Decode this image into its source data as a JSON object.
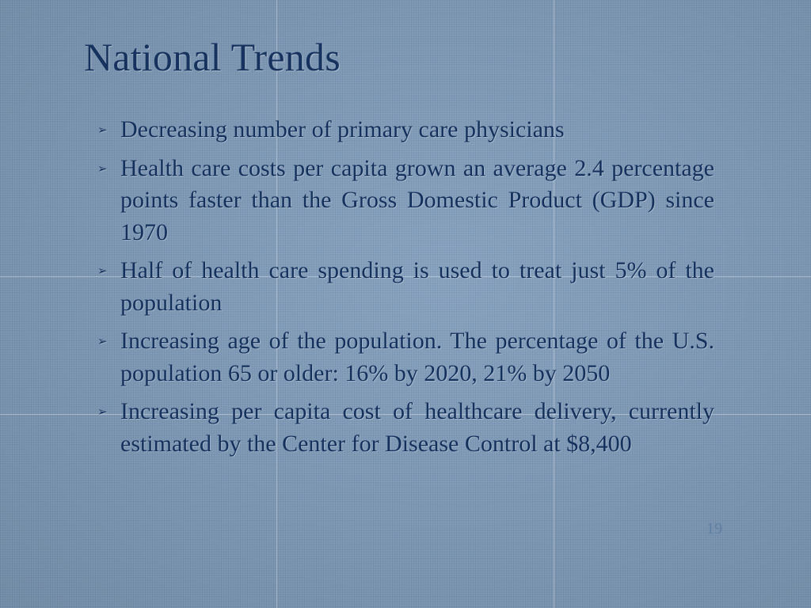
{
  "slide": {
    "title": "National Trends",
    "bullet_marker": "➢",
    "bullets": [
      "Decreasing number of primary care physicians",
      "Health care costs per capita grown an average 2.4 percentage points faster than the Gross Domestic Product (GDP) since 1970",
      "Half of health care spending is used to treat just 5% of the population",
      "Increasing age of the population. The percentage of the U.S. population 65 or older:  16% by 2020, 21% by 2050",
      "Increasing per capita cost of healthcare delivery, currently estimated by the Center for Disease Control at $8,400"
    ],
    "page_number": "19"
  },
  "colors": {
    "background": "#7f9cbb",
    "title": "#16325e",
    "body_text": "#14305c",
    "page_number": "#5f7ea4",
    "grid_lines": "#ffffff"
  }
}
